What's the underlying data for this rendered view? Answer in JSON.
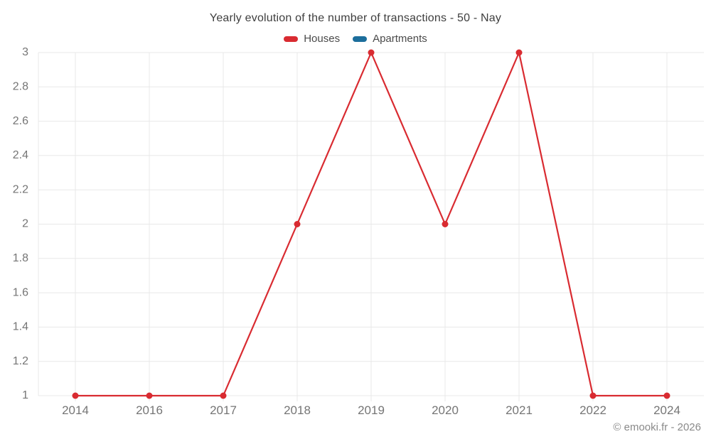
{
  "header": {
    "title": "Yearly evolution of the number of transactions - 50 - Nay"
  },
  "chart_data": {
    "type": "line",
    "title": "Yearly evolution of the number of transactions - 50 - Nay",
    "categories": [
      "2014",
      "2016",
      "2017",
      "2018",
      "2019",
      "2020",
      "2021",
      "2022",
      "2024"
    ],
    "series": [
      {
        "name": "Houses",
        "color": "#d92b31",
        "marker": "circle",
        "values": [
          1,
          1,
          1,
          2,
          3,
          2,
          3,
          1,
          1
        ]
      },
      {
        "name": "Apartments",
        "color": "#1c6e9c",
        "marker": "circle",
        "values": []
      }
    ],
    "xlabel": "",
    "ylabel": "",
    "ylim": [
      1,
      3
    ],
    "yticks": [
      1,
      1.2,
      1.4,
      1.6,
      1.8,
      2,
      2.2,
      2.4,
      2.6,
      2.8,
      3
    ],
    "ytick_labels": [
      "1",
      "1.2",
      "1.4",
      "1.6",
      "1.8",
      "2",
      "2.2",
      "2.4",
      "2.6",
      "2.8",
      "3"
    ],
    "grid": true,
    "legend_position": "top"
  },
  "footer": {
    "copyright": "© emooki.fr - 2026"
  },
  "colors": {
    "grid": "#e8e8e8",
    "axis_label": "#757575",
    "title_text": "#3e3e3e",
    "legend_text": "#4a4a4a",
    "footer_text": "#8a8a8a",
    "background": "#ffffff"
  }
}
